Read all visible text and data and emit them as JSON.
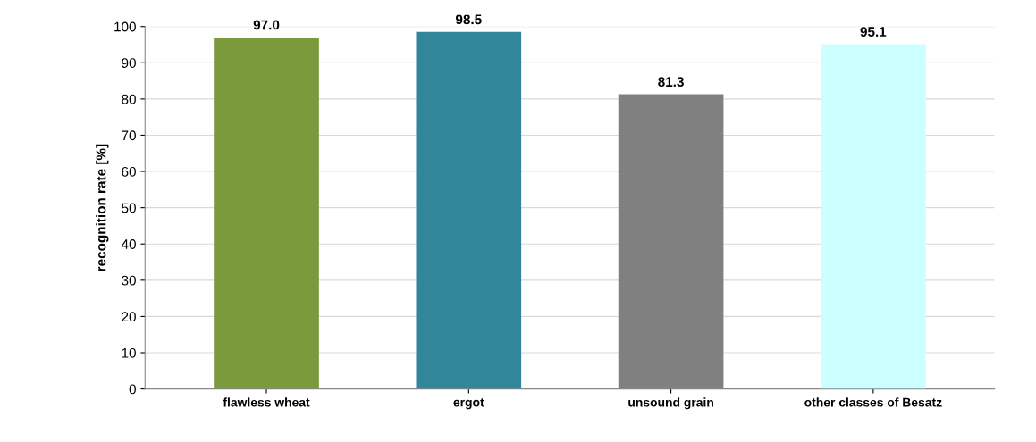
{
  "chart_data": {
    "type": "bar",
    "ylabel": "recognition rate [%]",
    "categories": [
      "flawless wheat",
      "ergot",
      "unsound grain",
      "other classes of Besatz"
    ],
    "values": [
      97.0,
      98.5,
      81.3,
      95.1
    ],
    "colors": [
      "#7a9a3c",
      "#31869b",
      "#808080",
      "#ccffff"
    ],
    "ylim": [
      0,
      100
    ],
    "yticks": [
      0,
      10,
      20,
      30,
      40,
      50,
      60,
      70,
      80,
      90,
      100
    ],
    "value_labels": [
      "97.0",
      "98.5",
      "81.3",
      "95.1"
    ],
    "grid": "y"
  }
}
